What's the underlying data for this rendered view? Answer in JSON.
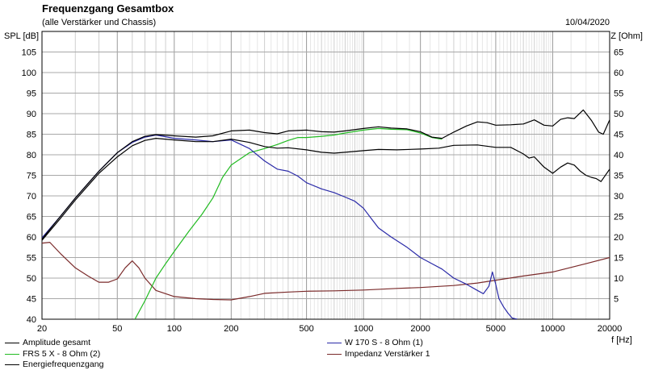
{
  "header": {
    "title": "Frequenzgang Gesamtbox",
    "subtitle": "(alle Verstärker und Chassis)",
    "date": "10/04/2020"
  },
  "chart_data": {
    "type": "line",
    "title": "Frequenzgang Gesamtbox",
    "subtitle": "(alle Verstärker und Chassis)",
    "xlabel": "f [Hz]",
    "ylabel": "SPL [dB]",
    "y2label": "Z [Ohm]",
    "xscale": "log",
    "xlim": [
      20,
      20000
    ],
    "ylim": [
      40,
      110
    ],
    "y2lim": [
      0,
      70
    ],
    "x_ticks": [
      20,
      50,
      100,
      200,
      500,
      1000,
      2000,
      5000,
      10000,
      20000
    ],
    "y_ticks": [
      40,
      45,
      50,
      55,
      60,
      65,
      70,
      75,
      80,
      85,
      90,
      95,
      100,
      105
    ],
    "y2_ticks": [
      5,
      10,
      15,
      20,
      25,
      30,
      35,
      40,
      45,
      50,
      55,
      60,
      65
    ],
    "grid": true,
    "legend_position": "bottom",
    "series": [
      {
        "name": "Amplitude gesamt",
        "color": "#000000",
        "axis": "left",
        "points": [
          [
            20,
            59.5
          ],
          [
            25,
            65
          ],
          [
            30,
            69.5
          ],
          [
            35,
            73
          ],
          [
            40,
            76
          ],
          [
            50,
            80.5
          ],
          [
            60,
            83.2
          ],
          [
            70,
            84.5
          ],
          [
            80,
            84.9
          ],
          [
            100,
            84.6
          ],
          [
            130,
            84.3
          ],
          [
            160,
            84.6
          ],
          [
            200,
            85.8
          ],
          [
            250,
            86
          ],
          [
            300,
            85.4
          ],
          [
            350,
            85.1
          ],
          [
            400,
            85.8
          ],
          [
            500,
            86
          ],
          [
            600,
            85.6
          ],
          [
            700,
            85.5
          ],
          [
            800,
            85.8
          ],
          [
            1000,
            86.4
          ],
          [
            1200,
            86.8
          ],
          [
            1400,
            86.5
          ],
          [
            1700,
            86.3
          ],
          [
            2000,
            85.6
          ],
          [
            2300,
            84.3
          ],
          [
            2600,
            84
          ],
          [
            3000,
            85.5
          ],
          [
            3500,
            87
          ],
          [
            4000,
            88
          ],
          [
            4500,
            87.8
          ],
          [
            5000,
            87.2
          ],
          [
            6000,
            87.3
          ],
          [
            7000,
            87.5
          ],
          [
            8000,
            88.5
          ],
          [
            9000,
            87.2
          ],
          [
            10000,
            87
          ],
          [
            11000,
            88.6
          ],
          [
            12000,
            89
          ],
          [
            13000,
            88.8
          ],
          [
            14500,
            90.9
          ],
          [
            16000,
            88.4
          ],
          [
            17500,
            85.5
          ],
          [
            18500,
            85
          ],
          [
            20000,
            88.5
          ]
        ]
      },
      {
        "name": "FRS 5 X - 8 Ohm (2)",
        "color": "#22bb22",
        "axis": "left",
        "points": [
          [
            62,
            40
          ],
          [
            70,
            44.5
          ],
          [
            80,
            50
          ],
          [
            90,
            53.5
          ],
          [
            100,
            56.5
          ],
          [
            120,
            61.5
          ],
          [
            140,
            65.5
          ],
          [
            160,
            69.5
          ],
          [
            180,
            74.5
          ],
          [
            200,
            77.5
          ],
          [
            250,
            80.5
          ],
          [
            300,
            81.5
          ],
          [
            350,
            82.5
          ],
          [
            400,
            83.5
          ],
          [
            450,
            84.2
          ],
          [
            500,
            84.2
          ],
          [
            600,
            84.5
          ],
          [
            700,
            84.8
          ],
          [
            800,
            85.3
          ],
          [
            1000,
            86
          ],
          [
            1200,
            86.4
          ],
          [
            1400,
            86.2
          ],
          [
            1700,
            86.1
          ],
          [
            2000,
            85.3
          ],
          [
            2300,
            84.2
          ],
          [
            2600,
            83.8
          ]
        ]
      },
      {
        "name": "W 170 S - 8 Ohm (1)",
        "color": "#2a2aa8",
        "axis": "left",
        "points": [
          [
            20,
            59.8
          ],
          [
            25,
            65
          ],
          [
            30,
            69.5
          ],
          [
            35,
            73
          ],
          [
            40,
            76
          ],
          [
            50,
            80.5
          ],
          [
            60,
            83
          ],
          [
            70,
            84.3
          ],
          [
            80,
            84.8
          ],
          [
            100,
            84
          ],
          [
            130,
            83.6
          ],
          [
            160,
            83.2
          ],
          [
            200,
            83.6
          ],
          [
            250,
            81.5
          ],
          [
            300,
            78.5
          ],
          [
            350,
            76.5
          ],
          [
            400,
            76
          ],
          [
            450,
            74.8
          ],
          [
            500,
            73.2
          ],
          [
            600,
            71.7
          ],
          [
            700,
            70.8
          ],
          [
            800,
            69.7
          ],
          [
            900,
            68.7
          ],
          [
            1000,
            67
          ],
          [
            1100,
            64.5
          ],
          [
            1200,
            62.2
          ],
          [
            1400,
            60
          ],
          [
            1700,
            57.5
          ],
          [
            2000,
            55
          ],
          [
            2300,
            53.5
          ],
          [
            2600,
            52.2
          ],
          [
            3000,
            50
          ],
          [
            3500,
            48.5
          ],
          [
            4000,
            47
          ],
          [
            4300,
            46.2
          ],
          [
            4600,
            48
          ],
          [
            4800,
            51.5
          ],
          [
            5000,
            48.5
          ],
          [
            5200,
            45
          ],
          [
            5500,
            43
          ],
          [
            5800,
            41.5
          ],
          [
            6100,
            40.3
          ],
          [
            6500,
            40
          ]
        ]
      },
      {
        "name": "Impedanz Verstärker 1",
        "color": "#7a2a2a",
        "axis": "right",
        "points": [
          [
            20,
            18.5
          ],
          [
            22,
            18.7
          ],
          [
            25,
            16
          ],
          [
            30,
            12.5
          ],
          [
            35,
            10.5
          ],
          [
            40,
            9
          ],
          [
            45,
            9
          ],
          [
            50,
            9.8
          ],
          [
            55,
            12.5
          ],
          [
            60,
            14.2
          ],
          [
            65,
            12.5
          ],
          [
            70,
            10
          ],
          [
            80,
            7
          ],
          [
            100,
            5.5
          ],
          [
            130,
            5
          ],
          [
            160,
            4.8
          ],
          [
            200,
            4.7
          ],
          [
            250,
            5.5
          ],
          [
            300,
            6.3
          ],
          [
            400,
            6.6
          ],
          [
            500,
            6.8
          ],
          [
            700,
            6.9
          ],
          [
            1000,
            7.1
          ],
          [
            1500,
            7.5
          ],
          [
            2000,
            7.7
          ],
          [
            3000,
            8.2
          ],
          [
            4000,
            8.8
          ],
          [
            5000,
            9.5
          ],
          [
            7000,
            10.5
          ],
          [
            10000,
            11.5
          ],
          [
            15000,
            13.5
          ],
          [
            20000,
            15
          ]
        ]
      },
      {
        "name": "Energiefrequenzgang",
        "color": "#000000",
        "axis": "left",
        "points": [
          [
            20,
            59.2
          ],
          [
            25,
            64.5
          ],
          [
            30,
            69
          ],
          [
            35,
            72.5
          ],
          [
            40,
            75.5
          ],
          [
            50,
            79.5
          ],
          [
            60,
            82.2
          ],
          [
            70,
            83.5
          ],
          [
            80,
            84
          ],
          [
            100,
            83.6
          ],
          [
            130,
            83.2
          ],
          [
            160,
            83.2
          ],
          [
            200,
            83.8
          ],
          [
            250,
            83
          ],
          [
            300,
            82
          ],
          [
            350,
            81.6
          ],
          [
            400,
            81.7
          ],
          [
            500,
            81.2
          ],
          [
            600,
            80.6
          ],
          [
            700,
            80.4
          ],
          [
            800,
            80.6
          ],
          [
            1000,
            81
          ],
          [
            1200,
            81.3
          ],
          [
            1500,
            81.2
          ],
          [
            2000,
            81.4
          ],
          [
            2500,
            81.6
          ],
          [
            3000,
            82.3
          ],
          [
            4000,
            82.4
          ],
          [
            5000,
            81.8
          ],
          [
            6000,
            81.8
          ],
          [
            7000,
            80.2
          ],
          [
            7500,
            79.2
          ],
          [
            8000,
            79.5
          ],
          [
            9000,
            77
          ],
          [
            10000,
            75.5
          ],
          [
            11000,
            77
          ],
          [
            12000,
            78
          ],
          [
            13000,
            77.5
          ],
          [
            14000,
            76
          ],
          [
            15000,
            75
          ],
          [
            16000,
            74.5
          ],
          [
            17000,
            74.2
          ],
          [
            18000,
            73.5
          ],
          [
            20000,
            76.5
          ]
        ]
      }
    ]
  }
}
